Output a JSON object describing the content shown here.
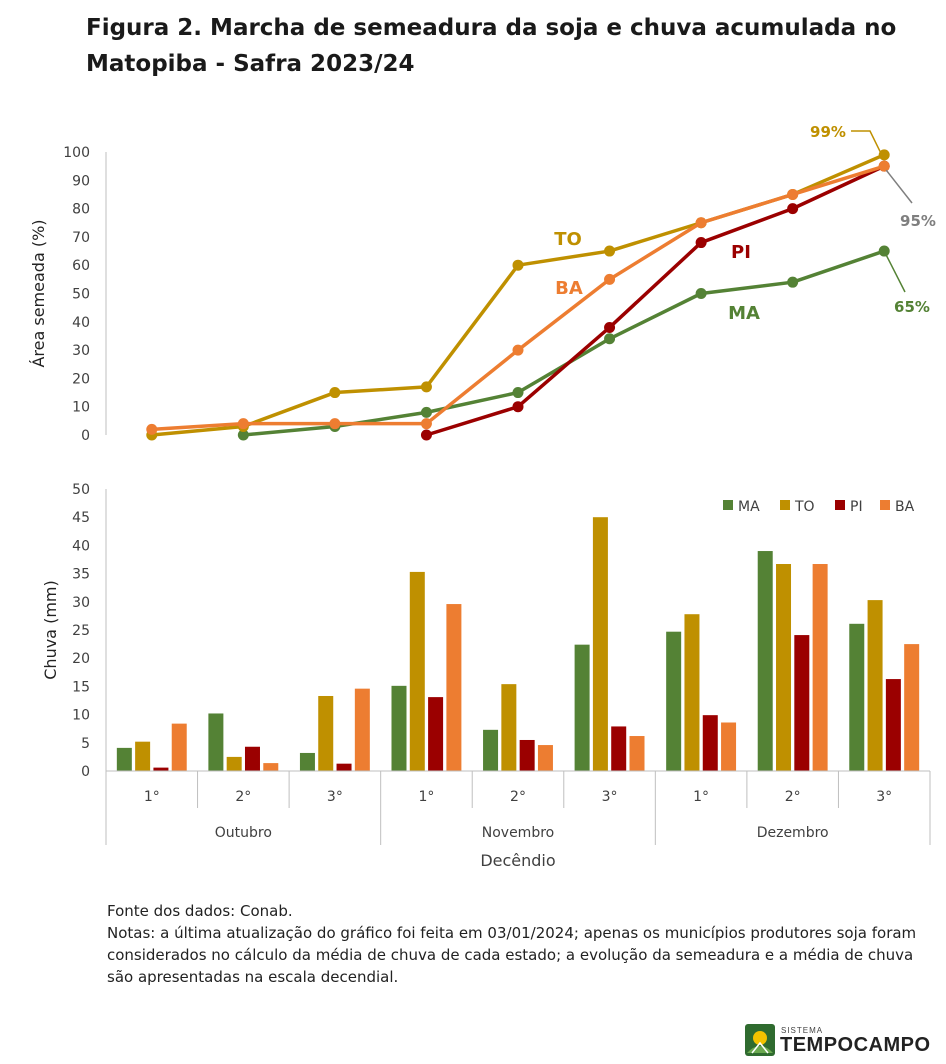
{
  "title": "Figura 2. Marcha de semeadura da soja e chuva acumulada no Matopiba - Safra 2023/24",
  "colors": {
    "MA": "#548235",
    "TO": "#bf9000",
    "PI": "#9b0000",
    "BA": "#ed7d31",
    "axis": "#bfbfbf",
    "text": "#404040",
    "label95": "#7f7f7f"
  },
  "chart_data": [
    {
      "type": "line",
      "ylabel": "Área semeada (%)",
      "ylim": [
        0,
        100
      ],
      "yticks": [
        0,
        10,
        20,
        30,
        40,
        50,
        60,
        70,
        80,
        90,
        100
      ],
      "x_positions": 9,
      "series": [
        {
          "name": "MA",
          "x": [
            2,
            3,
            4,
            5,
            6,
            7,
            8,
            9
          ],
          "values": [
            0,
            3,
            8,
            15,
            34,
            50,
            54,
            65
          ],
          "label": "MA",
          "end_label": "65%"
        },
        {
          "name": "TO",
          "x": [
            1,
            2,
            3,
            4,
            5,
            6,
            7,
            8,
            9
          ],
          "values": [
            0,
            3,
            15,
            17,
            60,
            65,
            75,
            85,
            99
          ],
          "label": "TO",
          "end_label": "99%"
        },
        {
          "name": "PI",
          "x": [
            4,
            5,
            6,
            7,
            8,
            9
          ],
          "values": [
            0,
            10,
            38,
            68,
            80,
            95
          ],
          "label": "PI"
        },
        {
          "name": "BA",
          "x": [
            1,
            2,
            3,
            4,
            5,
            6,
            7,
            8,
            9
          ],
          "values": [
            2,
            4,
            4,
            4,
            30,
            55,
            75,
            85,
            95
          ],
          "label": "BA",
          "end_label": "95%"
        }
      ]
    },
    {
      "type": "bar",
      "ylabel": "Chuva (mm)",
      "xlabel": "Decêndio",
      "ylim": [
        0,
        50
      ],
      "yticks": [
        0,
        5,
        10,
        15,
        20,
        25,
        30,
        35,
        40,
        45,
        50
      ],
      "categories": [
        "1°",
        "2°",
        "3°",
        "1°",
        "2°",
        "3°",
        "1°",
        "2°",
        "3°"
      ],
      "groups": [
        {
          "label": "Outubro",
          "span": 3
        },
        {
          "label": "Novembro",
          "span": 3
        },
        {
          "label": "Dezembro",
          "span": 3
        }
      ],
      "legend": [
        "MA",
        "TO",
        "PI",
        "BA"
      ],
      "legend_position": "top-right",
      "series": [
        {
          "name": "MA",
          "values": [
            4.1,
            10.2,
            3.2,
            15.1,
            7.3,
            22.4,
            24.7,
            39.0,
            26.1
          ]
        },
        {
          "name": "TO",
          "values": [
            5.2,
            2.5,
            13.3,
            35.3,
            15.4,
            45.0,
            27.8,
            36.7,
            30.3
          ]
        },
        {
          "name": "PI",
          "values": [
            0.6,
            4.3,
            1.3,
            13.1,
            5.5,
            7.9,
            9.9,
            24.1,
            16.3
          ]
        },
        {
          "name": "BA",
          "values": [
            8.4,
            1.4,
            14.6,
            29.6,
            4.6,
            6.2,
            8.6,
            36.7,
            22.5
          ]
        }
      ]
    }
  ],
  "notes": {
    "source": "Fonte dos dados: Conab.",
    "text": "Notas: a última atualização do gráfico foi feita em 03/01/2024; apenas os municípios produtores soja foram considerados no cálculo da média de chuva de cada estado; a evolução da semeadura e a média de chuva são apresentadas na escala decendial."
  },
  "logo": {
    "small": "SISTEMA",
    "big": "TEMPOCAMPO",
    "icon": "sun-field-icon"
  }
}
